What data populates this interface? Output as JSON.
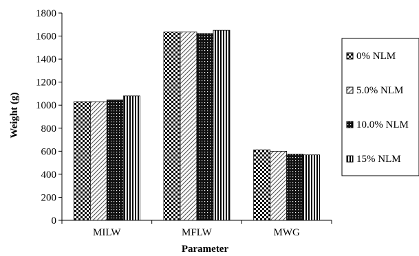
{
  "chart_data": {
    "type": "bar",
    "title": "",
    "xlabel": "Parameter",
    "ylabel": "Weight (g)",
    "ylim": [
      0,
      1800
    ],
    "yticks": [
      0,
      200,
      400,
      600,
      800,
      1000,
      1200,
      1400,
      1600,
      1800
    ],
    "grid": false,
    "legend_position": "right",
    "categories": [
      "MILW",
      "MFLW",
      "MWG"
    ],
    "series": [
      {
        "name": "0% NLM",
        "pattern": "checker",
        "values": [
          1030,
          1635,
          612
        ]
      },
      {
        "name": "5.0% NLM",
        "pattern": "diagonal",
        "values": [
          1030,
          1635,
          600
        ]
      },
      {
        "name": "10.0% NLM",
        "pattern": "dots",
        "values": [
          1045,
          1622,
          575
        ]
      },
      {
        "name": "15% NLM",
        "pattern": "vertical",
        "values": [
          1080,
          1650,
          568
        ]
      }
    ]
  }
}
